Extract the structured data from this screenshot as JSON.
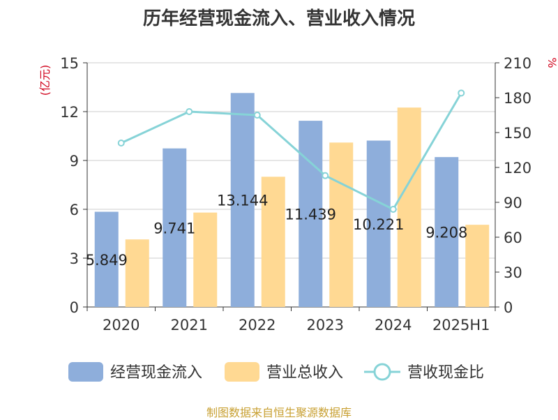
{
  "title": "历年经营现金流入、营业收入情况",
  "source": "制图数据来自恒生聚源数据库",
  "colors": {
    "cash_inflow": "#8eaedb",
    "revenue": "#ffd993",
    "ratio": "#86d3d7",
    "unit": "#d0021b"
  },
  "chart_data": {
    "type": "bar",
    "title": "历年经营现金流入、营业收入情况",
    "categories": [
      "2020",
      "2021",
      "2022",
      "2023",
      "2024",
      "2025H1"
    ],
    "left_axis": {
      "label": "(亿元)",
      "ylim": [
        0,
        15
      ],
      "ticks": [
        "0",
        "3",
        "6",
        "9",
        "12",
        "15"
      ]
    },
    "right_axis": {
      "label": "%",
      "ylim": [
        0,
        210
      ],
      "ticks": [
        "0",
        "30",
        "60",
        "90",
        "120",
        "150",
        "180",
        "210"
      ]
    },
    "grid": true,
    "legend_position": "bottom",
    "series": [
      {
        "name": "经营现金流入",
        "type": "bar",
        "axis": "left",
        "values": [
          5.849,
          9.741,
          13.144,
          11.439,
          10.221,
          9.208
        ],
        "labels": [
          "5.849",
          "9.741",
          "13.144",
          "11.439",
          "10.221",
          "9.208"
        ]
      },
      {
        "name": "营业总收入",
        "type": "bar",
        "axis": "left",
        "values": [
          4.15,
          5.8,
          8.0,
          10.1,
          12.25,
          5.05
        ]
      },
      {
        "name": "营收现金比",
        "type": "line",
        "axis": "right",
        "values": [
          141,
          168,
          165,
          113,
          84,
          184
        ]
      }
    ]
  }
}
